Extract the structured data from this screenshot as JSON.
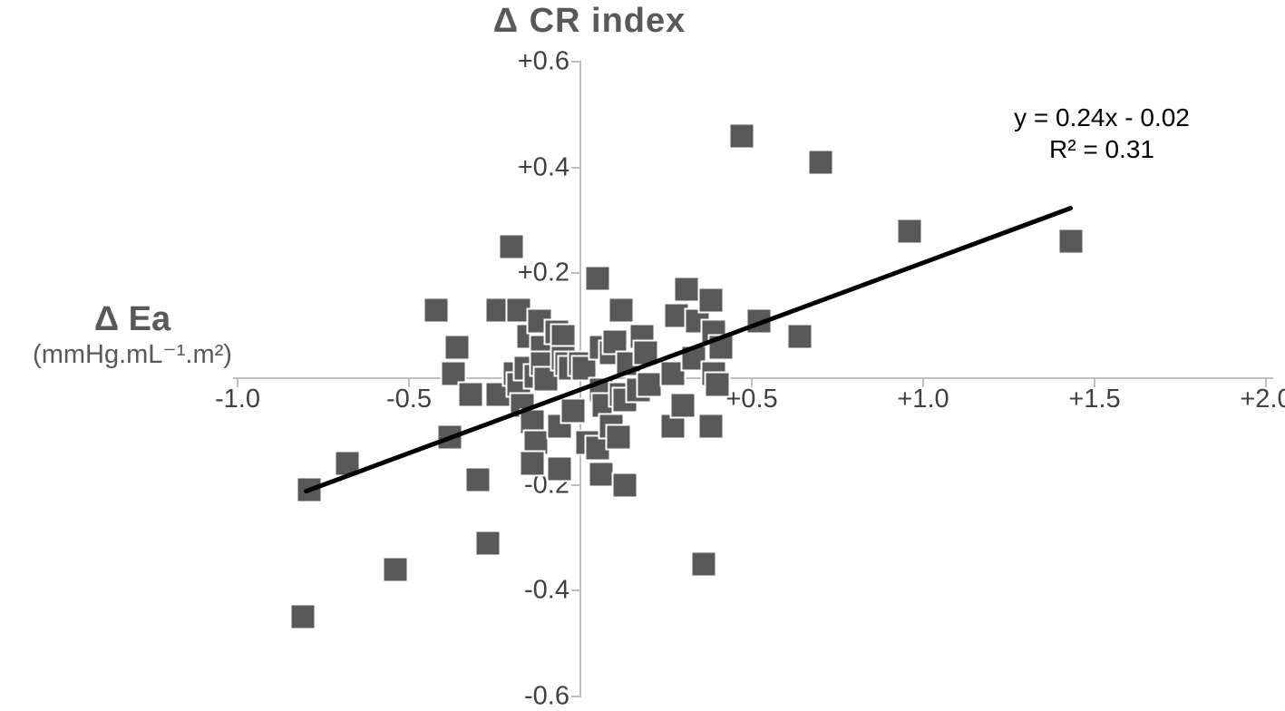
{
  "figure": {
    "title": "Δ CR index",
    "x_axis_title": "Δ Ea",
    "x_axis_units": "(mmHg.mL⁻¹.m²)",
    "equation": "y = 0.24x - 0.02",
    "r_squared": "R² = 0.31"
  },
  "colors": {
    "marker": "#595959",
    "marker_border": "#ffffff",
    "trendline": "#000000",
    "axis_line": "#bfbfbf",
    "tick_label": "#404040",
    "axis_title": "#595959",
    "equation_text": "#000000"
  },
  "chart_data": {
    "type": "scatter",
    "title": "Δ CR index",
    "xlabel": "Δ Ea (mmHg.mL⁻¹.m²)",
    "ylabel": "Δ CR index",
    "xlim": [
      -1.1,
      2.05
    ],
    "ylim": [
      -0.65,
      0.6
    ],
    "grid": false,
    "legend": false,
    "x_ticks": {
      "values": [
        -1.0,
        -0.5,
        0.5,
        1.0,
        1.5,
        2.0
      ],
      "labels": [
        "-1.0",
        "-0.5",
        "+0.5",
        "+1.0",
        "+1.5",
        "+2.0"
      ]
    },
    "y_ticks": {
      "values": [
        0.6,
        0.4,
        0.2,
        -0.2,
        -0.4,
        -0.6
      ],
      "labels": [
        "+0.6",
        "+0.4",
        "+0.2",
        "-0.2",
        "-0.4",
        "-0.6"
      ]
    },
    "annotation": {
      "lines": [
        "y = 0.24x - 0.02",
        "R² = 0.31"
      ]
    },
    "trendline": {
      "slope": 0.24,
      "intercept": -0.02,
      "x_start": -0.8,
      "x_end": 1.43
    },
    "points": [
      [
        -0.81,
        -0.45
      ],
      [
        -0.79,
        -0.21
      ],
      [
        -0.68,
        -0.16
      ],
      [
        -0.54,
        -0.36
      ],
      [
        -0.42,
        0.13
      ],
      [
        -0.38,
        -0.11
      ],
      [
        -0.37,
        0.01
      ],
      [
        -0.36,
        0.06
      ],
      [
        -0.32,
        -0.03
      ],
      [
        -0.3,
        -0.19
      ],
      [
        -0.27,
        -0.31
      ],
      [
        -0.24,
        0.13
      ],
      [
        -0.24,
        -0.03
      ],
      [
        -0.2,
        0.25
      ],
      [
        -0.19,
        0.01
      ],
      [
        -0.18,
        0.13
      ],
      [
        -0.18,
        -0.01
      ],
      [
        -0.17,
        -0.05
      ],
      [
        -0.16,
        0.02
      ],
      [
        -0.15,
        0.08
      ],
      [
        -0.14,
        -0.08
      ],
      [
        -0.13,
        -0.12
      ],
      [
        -0.14,
        -0.16
      ],
      [
        -0.13,
        0.005
      ],
      [
        -0.12,
        0.11
      ],
      [
        -0.11,
        0.06
      ],
      [
        -0.11,
        0.03
      ],
      [
        -0.1,
        0.0
      ],
      [
        -0.07,
        0.09
      ],
      [
        -0.06,
        -0.09
      ],
      [
        -0.06,
        -0.17
      ],
      [
        -0.05,
        0.08
      ],
      [
        -0.05,
        0.04
      ],
      [
        -0.04,
        0.03
      ],
      [
        -0.03,
        0.02
      ],
      [
        -0.02,
        -0.06
      ],
      [
        0.0,
        0.03
      ],
      [
        0.01,
        0.02
      ],
      [
        0.02,
        -0.12
      ],
      [
        0.05,
        0.19
      ],
      [
        0.05,
        -0.13
      ],
      [
        0.06,
        0.06
      ],
      [
        0.06,
        -0.18
      ],
      [
        0.06,
        -0.02
      ],
      [
        0.07,
        -0.05
      ],
      [
        0.09,
        0.05
      ],
      [
        0.09,
        -0.09
      ],
      [
        0.1,
        0.07
      ],
      [
        0.11,
        -0.11
      ],
      [
        0.12,
        0.13
      ],
      [
        0.12,
        -0.03
      ],
      [
        0.13,
        -0.04
      ],
      [
        0.13,
        -0.2
      ],
      [
        0.14,
        0.03
      ],
      [
        0.17,
        -0.02
      ],
      [
        0.18,
        0.08
      ],
      [
        0.19,
        0.05
      ],
      [
        0.2,
        -0.01
      ],
      [
        0.27,
        0.01
      ],
      [
        0.27,
        -0.09
      ],
      [
        0.28,
        0.12
      ],
      [
        0.3,
        -0.05
      ],
      [
        0.31,
        0.17
      ],
      [
        0.33,
        0.04
      ],
      [
        0.34,
        0.11
      ],
      [
        0.36,
        -0.35
      ],
      [
        0.38,
        0.15
      ],
      [
        0.38,
        -0.09
      ],
      [
        0.39,
        0.01
      ],
      [
        0.39,
        0.09
      ],
      [
        0.4,
        -0.01
      ],
      [
        0.41,
        0.06
      ],
      [
        0.47,
        0.46
      ],
      [
        0.52,
        0.11
      ],
      [
        0.64,
        0.08
      ],
      [
        0.7,
        0.41
      ],
      [
        0.96,
        0.28
      ],
      [
        1.43,
        0.26
      ]
    ]
  }
}
